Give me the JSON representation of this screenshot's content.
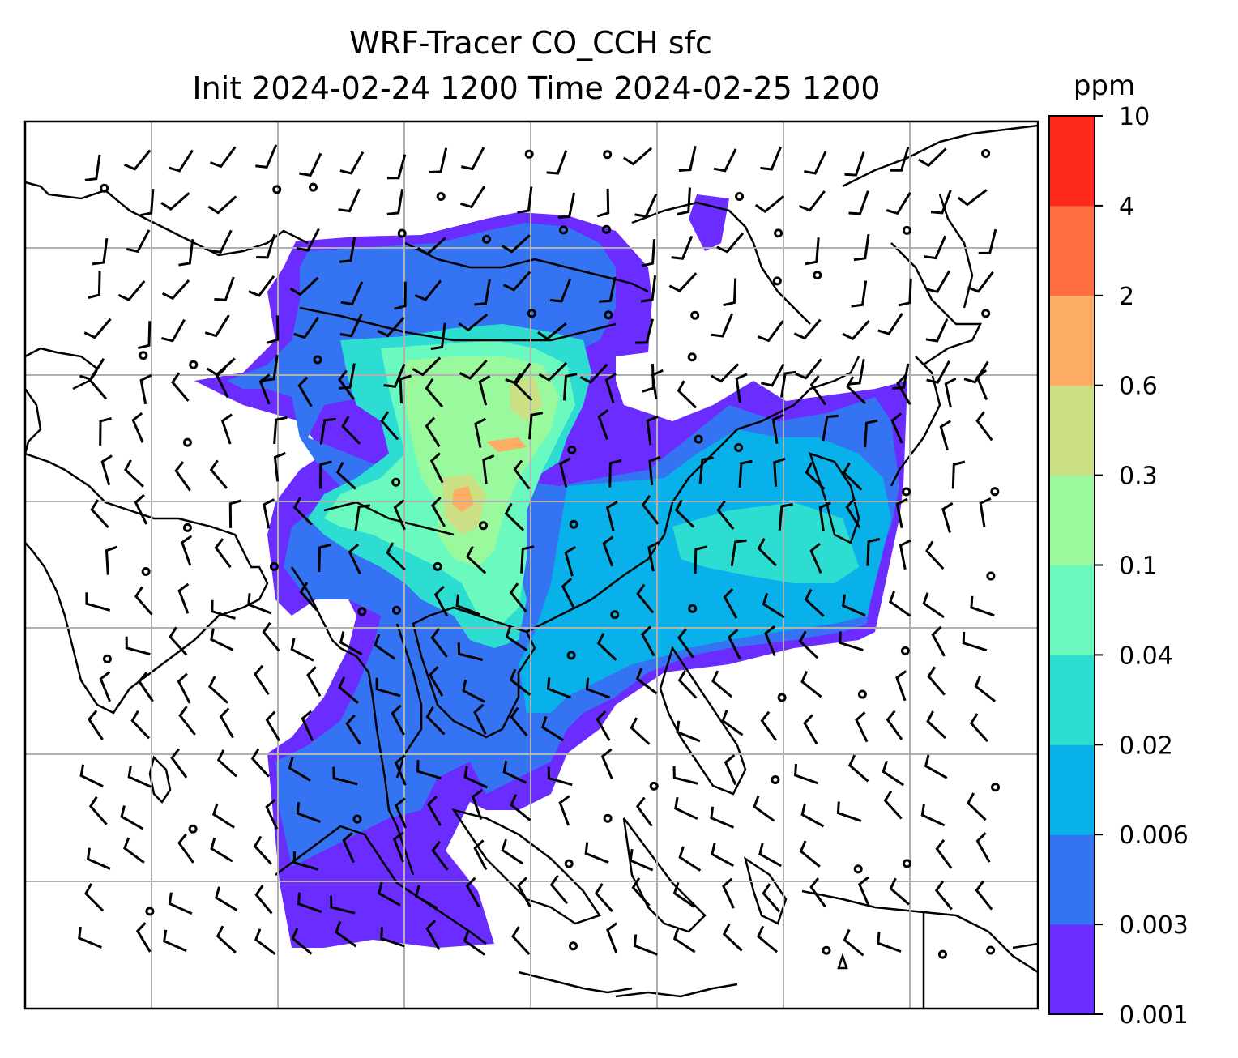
{
  "title": {
    "line1": "WRF-Tracer CO_CCH sfc",
    "line2": "Init 2024-02-24 1200 Time 2024-02-25 1200"
  },
  "colorbar": {
    "unit": "ppm",
    "levels": [
      "0.001",
      "0.003",
      "0.006",
      "0.02",
      "0.04",
      "0.1",
      "0.3",
      "0.6",
      "2",
      "4",
      "10"
    ],
    "colors": [
      "#6a2cff",
      "#3473f1",
      "#08b1e9",
      "#2dddd1",
      "#6af9bf",
      "#9bf99d",
      "#cbdf85",
      "#feae64",
      "#fe703f",
      "#fe2a1b"
    ]
  },
  "map": {
    "projection": "Lambert conformal",
    "gridlines": true,
    "gridline_color": "#b0b0b0",
    "coastline_color": "#000000",
    "wind_barbs": true
  }
}
